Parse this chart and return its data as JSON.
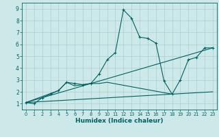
{
  "title": "",
  "xlabel": "Humidex (Indice chaleur)",
  "xlim": [
    -0.5,
    23.5
  ],
  "ylim": [
    0.5,
    9.5
  ],
  "xticks": [
    0,
    1,
    2,
    3,
    4,
    5,
    6,
    7,
    8,
    9,
    10,
    11,
    12,
    13,
    14,
    15,
    16,
    17,
    18,
    19,
    20,
    21,
    22,
    23
  ],
  "yticks": [
    1,
    2,
    3,
    4,
    5,
    6,
    7,
    8,
    9
  ],
  "bg_color": "#cce8e8",
  "line_color": "#006060",
  "grid_color": "#aacfcf",
  "line1_x": [
    0,
    1,
    2,
    3,
    4,
    5,
    6,
    7,
    8,
    9,
    10,
    11,
    12,
    13,
    14,
    15,
    16,
    17,
    18,
    19,
    20,
    21,
    22,
    23
  ],
  "line1_y": [
    1.1,
    1.0,
    1.5,
    1.8,
    2.1,
    2.8,
    2.7,
    2.6,
    2.7,
    3.5,
    4.7,
    5.3,
    8.9,
    8.2,
    6.6,
    6.5,
    6.1,
    2.9,
    1.8,
    3.0,
    4.7,
    4.9,
    5.7,
    5.7
  ],
  "line2_x": [
    0,
    23
  ],
  "line2_y": [
    1.1,
    5.7
  ],
  "line3_x": [
    0,
    4,
    5,
    6,
    7,
    8,
    9,
    10,
    18
  ],
  "line3_y": [
    1.1,
    2.1,
    2.8,
    2.5,
    2.6,
    2.7,
    2.7,
    2.8,
    1.8
  ],
  "line4_x": [
    0,
    23
  ],
  "line4_y": [
    1.1,
    2.0
  ]
}
